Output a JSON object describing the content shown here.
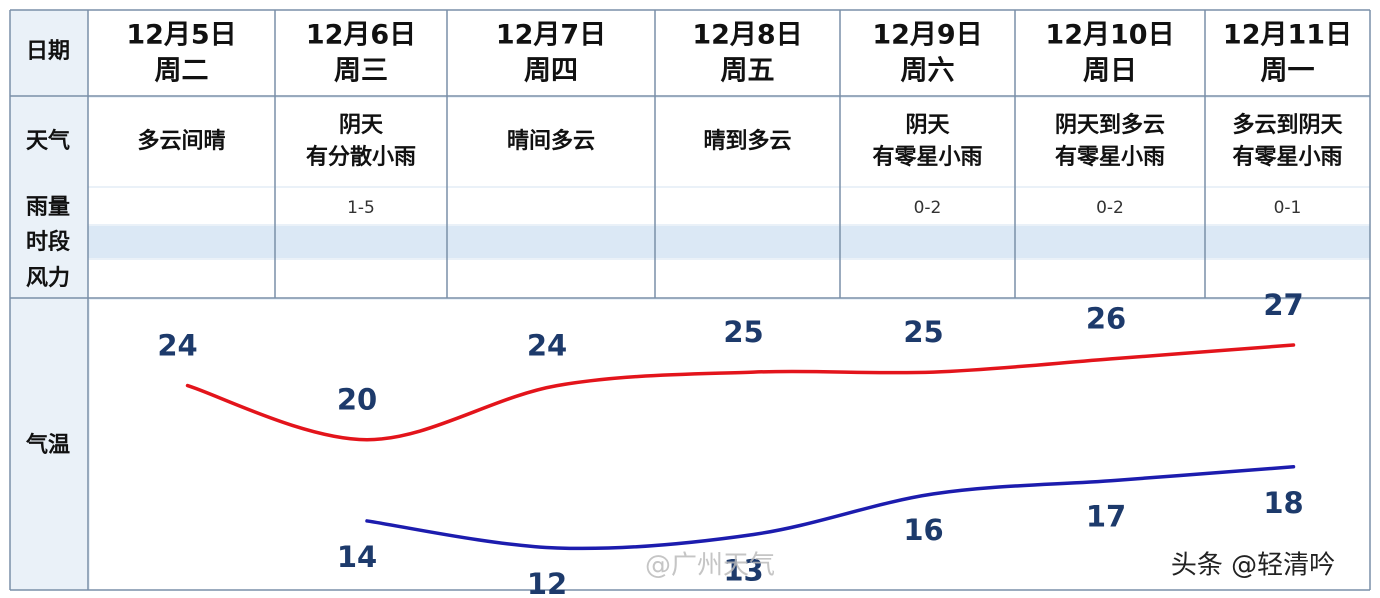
{
  "table": {
    "row_labels": {
      "date": "日期",
      "weather": "天气",
      "rain": "雨量",
      "period": "时段",
      "wind": "风力",
      "temp": "气温"
    },
    "days": [
      {
        "date": "12月5日",
        "weekday": "周二",
        "weather": [
          "多云间晴"
        ]
      },
      {
        "date": "12月6日",
        "weekday": "周三",
        "weather": [
          "阴天",
          "有分散小雨"
        ],
        "rain": "1-5"
      },
      {
        "date": "12月7日",
        "weekday": "周四",
        "weather": [
          "晴间多云"
        ]
      },
      {
        "date": "12月8日",
        "weekday": "周五",
        "weather": [
          "晴到多云"
        ]
      },
      {
        "date": "12月9日",
        "weekday": "周六",
        "weather": [
          "阴天",
          "有零星小雨"
        ],
        "rain": "0-2",
        "color": "#e5141b"
      },
      {
        "date": "12月10日",
        "weekday": "周日",
        "weather": [
          "阴天到多云",
          "有零星小雨"
        ],
        "rain": "0-2",
        "color": "#e5141b"
      },
      {
        "date": "12月11日",
        "weekday": "周一",
        "weather": [
          "多云到阴天",
          "有零星小雨"
        ],
        "rain": "0-1"
      }
    ]
  },
  "chart_data": {
    "type": "line",
    "series": [
      {
        "color": "#e3141b",
        "values": [
          24,
          20,
          24,
          25,
          25,
          26,
          27
        ],
        "label_side": "above"
      },
      {
        "color": "#1c1cae",
        "values": [
          null,
          14,
          12,
          13,
          16,
          17,
          18
        ],
        "label_side": "below"
      }
    ]
  },
  "watermarks": [
    "@广州天气",
    "头条 @轻清吟"
  ]
}
